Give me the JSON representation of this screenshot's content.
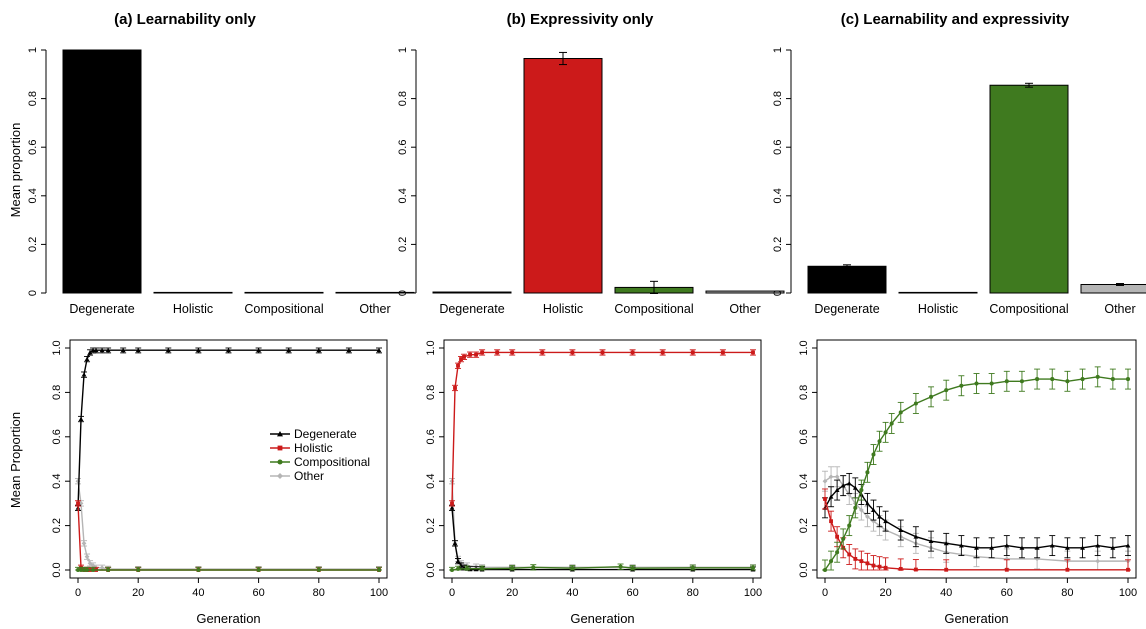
{
  "colors": {
    "Degenerate": "#000000",
    "Holistic": "#cc1a1a",
    "Compositional": "#3f7a1f",
    "Other": "#b5b5b5"
  },
  "labels": {
    "ylabel_top": "Mean proportion",
    "ylabel_bottom": "Mean Proportion",
    "xlabel_bottom": "Generation"
  },
  "legend": {
    "placement": "center-right of panel (a) bottom",
    "entries": [
      "Degenerate",
      "Holistic",
      "Compositional",
      "Other"
    ]
  },
  "chart_data": [
    {
      "type": "bar",
      "title": "(a) Learnability only",
      "categories": [
        "Degenerate",
        "Holistic",
        "Compositional",
        "Other"
      ],
      "values": [
        1.0,
        0.0,
        0.0,
        0.001
      ],
      "errors": [
        0.0,
        0.0,
        0.0,
        0.0
      ],
      "ylabel": "Mean proportion",
      "ylim": [
        0,
        1
      ],
      "yticks": [
        "0",
        "0.2",
        "0.4",
        "0.6",
        "0.8",
        "1"
      ]
    },
    {
      "type": "bar",
      "title": "(b) Expressivity only",
      "categories": [
        "Degenerate",
        "Holistic",
        "Compositional",
        "Other"
      ],
      "values": [
        0.004,
        0.965,
        0.023,
        0.008
      ],
      "errors": [
        0.0,
        0.025,
        0.025,
        0.0
      ],
      "ylim": [
        0,
        1
      ],
      "yticks": [
        "0",
        "0.2",
        "0.4",
        "0.6",
        "0.8",
        "1"
      ]
    },
    {
      "type": "bar",
      "title": "(c) Learnability and expressivity",
      "categories": [
        "Degenerate",
        "Holistic",
        "Compositional",
        "Other"
      ],
      "values": [
        0.11,
        0.001,
        0.855,
        0.035
      ],
      "errors": [
        0.006,
        0.0,
        0.008,
        0.004
      ],
      "ylim": [
        0,
        1
      ],
      "yticks": [
        "0",
        "0.2",
        "0.4",
        "0.6",
        "0.8",
        "1"
      ]
    },
    {
      "type": "line",
      "xlabel": "Generation",
      "ylabel": "Mean Proportion",
      "xlim": [
        0,
        100
      ],
      "ylim": [
        0,
        1
      ],
      "xticks": [
        "0",
        "20",
        "40",
        "60",
        "80",
        "100"
      ],
      "yticks": [
        "0.0",
        "0.2",
        "0.4",
        "0.6",
        "0.8",
        "1.0"
      ],
      "series": [
        {
          "name": "Degenerate",
          "x": [
            0,
            1,
            2,
            3,
            4,
            5,
            6,
            8,
            10,
            15,
            20,
            30,
            40,
            50,
            60,
            70,
            80,
            90,
            100
          ],
          "y": [
            0.28,
            0.68,
            0.88,
            0.95,
            0.98,
            0.99,
            0.99,
            0.99,
            0.99,
            0.99,
            0.99,
            0.99,
            0.99,
            0.99,
            0.99,
            0.99,
            0.99,
            0.99,
            0.99
          ]
        },
        {
          "name": "Holistic",
          "x": [
            0,
            1,
            2,
            3,
            4,
            6,
            10,
            20,
            40,
            60,
            80,
            100
          ],
          "y": [
            0.3,
            0.01,
            0,
            0,
            0,
            0,
            0,
            0,
            0,
            0,
            0,
            0
          ]
        },
        {
          "name": "Compositional",
          "x": [
            0,
            1,
            2,
            3,
            5,
            10,
            20,
            40,
            60,
            80,
            100
          ],
          "y": [
            0.0,
            0.0,
            0,
            0,
            0,
            0,
            0,
            0,
            0,
            0,
            0
          ]
        },
        {
          "name": "Other",
          "x": [
            0,
            1,
            2,
            3,
            4,
            5,
            6,
            8,
            10,
            20,
            40,
            60,
            80,
            100
          ],
          "y": [
            0.4,
            0.3,
            0.12,
            0.06,
            0.03,
            0.02,
            0.01,
            0.01,
            0.005,
            0.004,
            0.004,
            0.004,
            0.004,
            0.004
          ]
        }
      ]
    },
    {
      "type": "line",
      "xlabel": "Generation",
      "xlim": [
        0,
        100
      ],
      "ylim": [
        0,
        1
      ],
      "xticks": [
        "0",
        "20",
        "40",
        "60",
        "80",
        "100"
      ],
      "yticks": [
        "0.0",
        "0.2",
        "0.4",
        "0.6",
        "0.8",
        "1.0"
      ],
      "series": [
        {
          "name": "Degenerate",
          "x": [
            0,
            1,
            2,
            3,
            4,
            5,
            6,
            8,
            10,
            20,
            40,
            60,
            80,
            100
          ],
          "y": [
            0.28,
            0.12,
            0.04,
            0.02,
            0.01,
            0.005,
            0.003,
            0.003,
            0.002,
            0.002,
            0.002,
            0.002,
            0.002,
            0.002
          ]
        },
        {
          "name": "Holistic",
          "x": [
            0,
            1,
            2,
            3,
            4,
            6,
            8,
            10,
            15,
            20,
            30,
            40,
            50,
            60,
            70,
            80,
            90,
            100
          ],
          "y": [
            0.3,
            0.82,
            0.92,
            0.95,
            0.96,
            0.97,
            0.97,
            0.98,
            0.98,
            0.98,
            0.98,
            0.98,
            0.98,
            0.98,
            0.98,
            0.98,
            0.98,
            0.98
          ]
        },
        {
          "name": "Compositional",
          "x": [
            0,
            2,
            5,
            10,
            20,
            27,
            40,
            56,
            60,
            80,
            100
          ],
          "y": [
            0.0,
            0.005,
            0.006,
            0.006,
            0.008,
            0.012,
            0.008,
            0.015,
            0.008,
            0.01,
            0.01
          ]
        },
        {
          "name": "Other",
          "x": [
            0,
            1,
            2,
            3,
            5,
            8,
            10,
            20,
            40,
            60,
            80,
            100
          ],
          "y": [
            0.4,
            0.12,
            0.05,
            0.03,
            0.02,
            0.015,
            0.012,
            0.012,
            0.012,
            0.012,
            0.012,
            0.012
          ]
        }
      ]
    },
    {
      "type": "line",
      "xlabel": "Generation",
      "xlim": [
        0,
        100
      ],
      "ylim": [
        0,
        1
      ],
      "xticks": [
        "0",
        "20",
        "40",
        "60",
        "80",
        "100"
      ],
      "yticks": [
        "0.0",
        "0.2",
        "0.4",
        "0.6",
        "0.8",
        "1.0"
      ],
      "series": [
        {
          "name": "Degenerate",
          "x": [
            0,
            2,
            4,
            6,
            8,
            10,
            12,
            14,
            16,
            18,
            20,
            25,
            30,
            35,
            40,
            45,
            50,
            55,
            60,
            65,
            70,
            75,
            80,
            85,
            90,
            95,
            100
          ],
          "y": [
            0.28,
            0.33,
            0.36,
            0.38,
            0.39,
            0.37,
            0.34,
            0.3,
            0.27,
            0.24,
            0.22,
            0.18,
            0.15,
            0.13,
            0.12,
            0.11,
            0.1,
            0.1,
            0.11,
            0.1,
            0.1,
            0.11,
            0.1,
            0.1,
            0.11,
            0.1,
            0.11
          ]
        },
        {
          "name": "Holistic",
          "x": [
            0,
            2,
            4,
            6,
            8,
            10,
            12,
            14,
            16,
            18,
            20,
            25,
            30,
            40,
            60,
            80,
            100
          ],
          "y": [
            0.32,
            0.22,
            0.15,
            0.1,
            0.07,
            0.05,
            0.04,
            0.03,
            0.02,
            0.015,
            0.01,
            0.005,
            0.002,
            0.001,
            0.001,
            0.001,
            0.001
          ]
        },
        {
          "name": "Compositional",
          "x": [
            0,
            2,
            4,
            6,
            8,
            10,
            12,
            14,
            16,
            18,
            20,
            22,
            25,
            30,
            35,
            40,
            45,
            50,
            55,
            60,
            65,
            70,
            75,
            80,
            85,
            90,
            95,
            100
          ],
          "y": [
            0.0,
            0.04,
            0.08,
            0.14,
            0.2,
            0.28,
            0.36,
            0.44,
            0.52,
            0.58,
            0.62,
            0.66,
            0.71,
            0.75,
            0.78,
            0.81,
            0.83,
            0.84,
            0.84,
            0.85,
            0.85,
            0.86,
            0.86,
            0.85,
            0.86,
            0.87,
            0.86,
            0.86
          ]
        },
        {
          "name": "Other",
          "x": [
            0,
            2,
            4,
            6,
            8,
            10,
            12,
            14,
            16,
            18,
            20,
            25,
            30,
            35,
            40,
            50,
            60,
            70,
            80,
            90,
            100
          ],
          "y": [
            0.4,
            0.42,
            0.42,
            0.38,
            0.34,
            0.3,
            0.27,
            0.24,
            0.22,
            0.2,
            0.18,
            0.15,
            0.12,
            0.1,
            0.08,
            0.06,
            0.05,
            0.05,
            0.04,
            0.04,
            0.04
          ]
        }
      ]
    }
  ]
}
